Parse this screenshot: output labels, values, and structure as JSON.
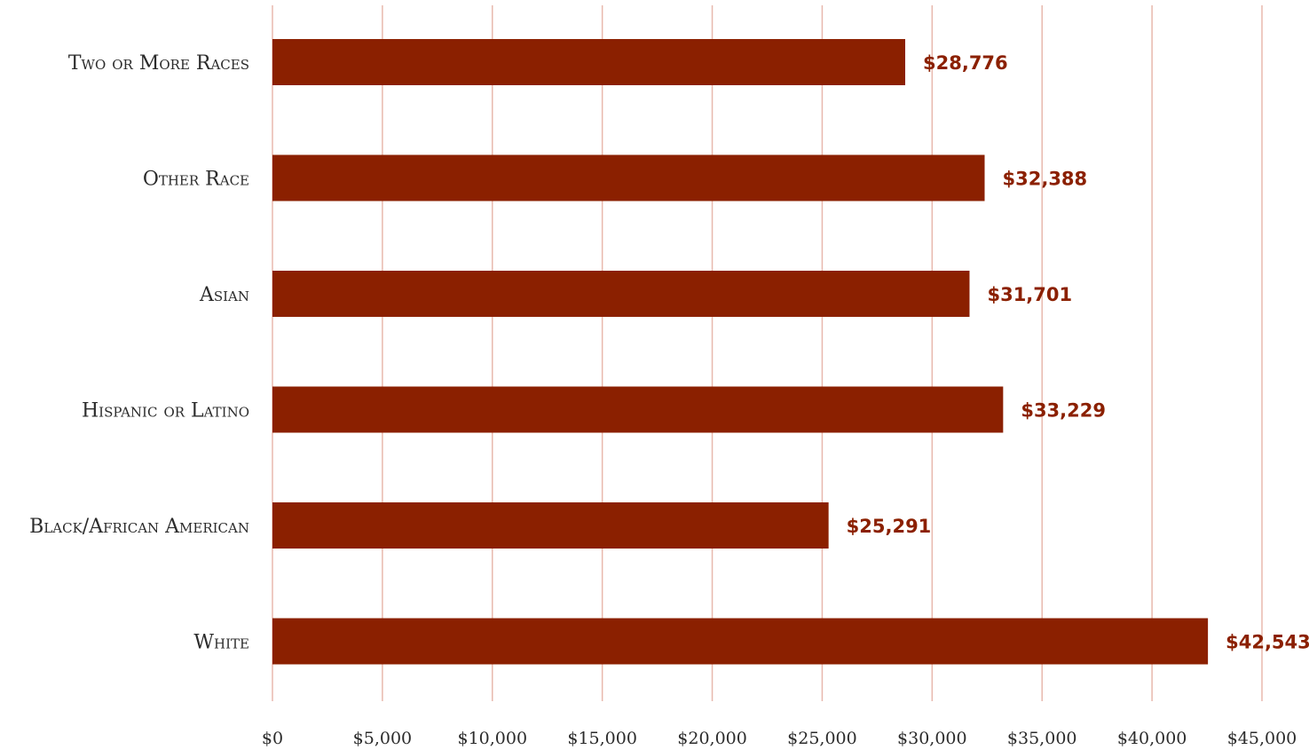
{
  "chart_data": {
    "type": "bar",
    "orientation": "horizontal",
    "categories": [
      "Two or More Races",
      "Other Race",
      "Asian",
      "Hispanic or Latino",
      "Black/African American",
      "White"
    ],
    "values": [
      28776,
      32388,
      31701,
      33229,
      25291,
      42543
    ],
    "value_labels": [
      "$28,776",
      "$32,388",
      "$31,701",
      "$33,229",
      "$25,291",
      "$42,543"
    ],
    "x_ticks": [
      0,
      5000,
      10000,
      15000,
      20000,
      25000,
      30000,
      35000,
      40000,
      45000
    ],
    "x_tick_labels": [
      "$0",
      "$5,000",
      "$10,000",
      "$15,000",
      "$20,000",
      "$25,000",
      "$30,000",
      "$35,000",
      "$40,000",
      "$45,000"
    ],
    "xlim": [
      0,
      45000
    ],
    "grid": true,
    "title": "",
    "xlabel": "",
    "ylabel": "",
    "colors": {
      "bar": "#8b2000",
      "value_label": "#8b2000",
      "grid": "#e8b8ad"
    }
  }
}
